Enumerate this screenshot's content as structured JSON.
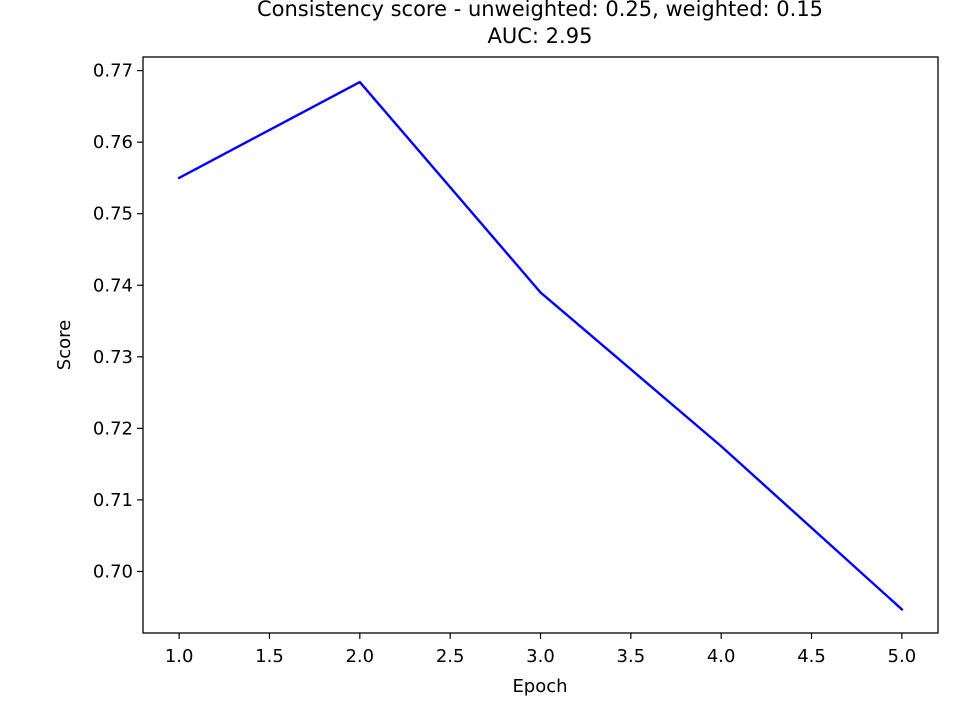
{
  "chart_data": {
    "type": "line",
    "title": [
      "Consistency score - unweighted: 0.25, weighted: 0.15",
      "AUC: 2.95"
    ],
    "xlabel": "Epoch",
    "ylabel": "Score",
    "xlim": [
      0.8,
      5.2
    ],
    "ylim": [
      0.6914,
      0.7719
    ],
    "xticks": [
      1.0,
      1.5,
      2.0,
      2.5,
      3.0,
      3.5,
      4.0,
      4.5,
      5.0
    ],
    "xtick_labels": [
      "1.0",
      "1.5",
      "2.0",
      "2.5",
      "3.0",
      "3.5",
      "4.0",
      "4.5",
      "5.0"
    ],
    "yticks": [
      0.7,
      0.71,
      0.72,
      0.73,
      0.74,
      0.75,
      0.76,
      0.77
    ],
    "ytick_labels": [
      "0.70",
      "0.71",
      "0.72",
      "0.73",
      "0.74",
      "0.75",
      "0.76",
      "0.77"
    ],
    "grid": false,
    "series": [
      {
        "color": "#0000ff",
        "x": [
          1,
          2,
          3,
          4,
          5
        ],
        "y": [
          0.755,
          0.7684,
          0.739,
          0.7175,
          0.6947
        ]
      }
    ]
  }
}
